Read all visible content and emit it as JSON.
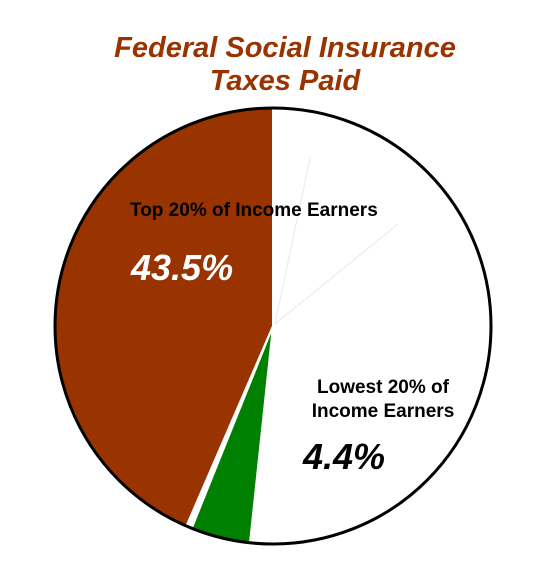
{
  "chart_data": {
    "type": "pie",
    "title_lines": [
      "Federal Social Insurance",
      "Taxes Paid"
    ],
    "slices": [
      {
        "name": "Top 20% of Income Earners",
        "value": 43.5,
        "label": "43.5%",
        "color": "#993300"
      },
      {
        "name": "Lowest 20% of Income Earners",
        "value": 4.4,
        "label": "4.4%",
        "color": "#008000"
      },
      {
        "name": "",
        "value": 52.1,
        "label": "",
        "color": "#ffffff"
      }
    ],
    "labels": {
      "top_name": "Top 20% of Income Earners",
      "top_value": "43.5%",
      "low_name_lines": [
        "Lowest 20% of",
        "Income Earners"
      ],
      "low_value": "4.4%"
    },
    "colors": {
      "title": "#993300",
      "outline": "#000000",
      "inner_lines": "#e8e8e8"
    }
  }
}
